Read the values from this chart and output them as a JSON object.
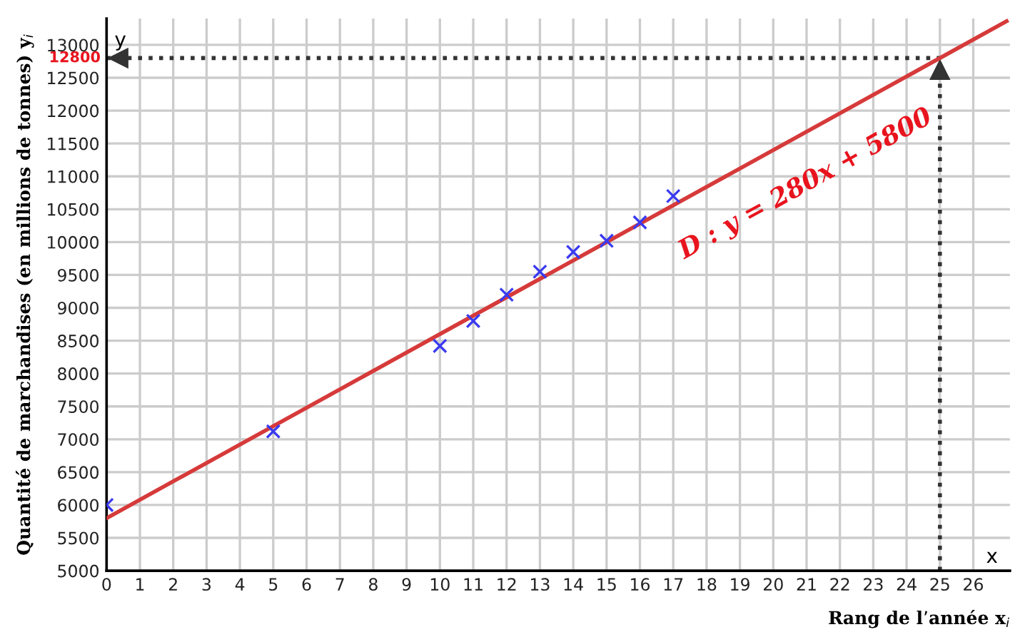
{
  "chart_data": {
    "type": "scatter",
    "xlabel": "Rang de l’année x$_{i}$",
    "ylabel": "Quantité de marchandises (en millions de tonnes) y$_{i}$",
    "series": [
      {
        "color": "#3a3af0",
        "marker": "cross",
        "x": [
          0,
          5,
          10,
          11,
          12,
          13,
          14,
          15,
          16,
          17
        ],
        "values": [
          6000,
          7120,
          8420,
          8800,
          9200,
          9550,
          9850,
          10020,
          10300,
          10700
        ]
      },
      {
        "type": "line",
        "color": "#d63a3a",
        "marker": "none",
        "x": [
          0,
          27
        ],
        "values": [
          5800,
          13360
        ]
      }
    ],
    "annotations": [
      {
        "text": "D : y = 280x + 5800",
        "x": 20.5,
        "y": 11540
      },
      "x",
      "y"
    ],
    "ref_lines": [
      {
        "axis": "y",
        "value": 12800,
        "label": "12800",
        "color": "#333333",
        "line_style": "dotted"
      },
      {
        "axis": "x",
        "value": 25,
        "color": "#333333",
        "line_style": "dotted"
      }
    ],
    "xlim": [
      0,
      27.1
    ],
    "ylim": [
      5000,
      13400
    ],
    "xticks": [
      0,
      1,
      2,
      3,
      4,
      5,
      6,
      7,
      8,
      9,
      10,
      11,
      12,
      13,
      14,
      15,
      16,
      17,
      18,
      19,
      20,
      21,
      22,
      23,
      24,
      25,
      26
    ],
    "yticks": [
      5000,
      5500,
      6000,
      6500,
      7000,
      7500,
      8000,
      8500,
      9000,
      9500,
      10000,
      10500,
      11000,
      11500,
      12000,
      12500,
      13000
    ],
    "grid": true,
    "legend": false
  }
}
